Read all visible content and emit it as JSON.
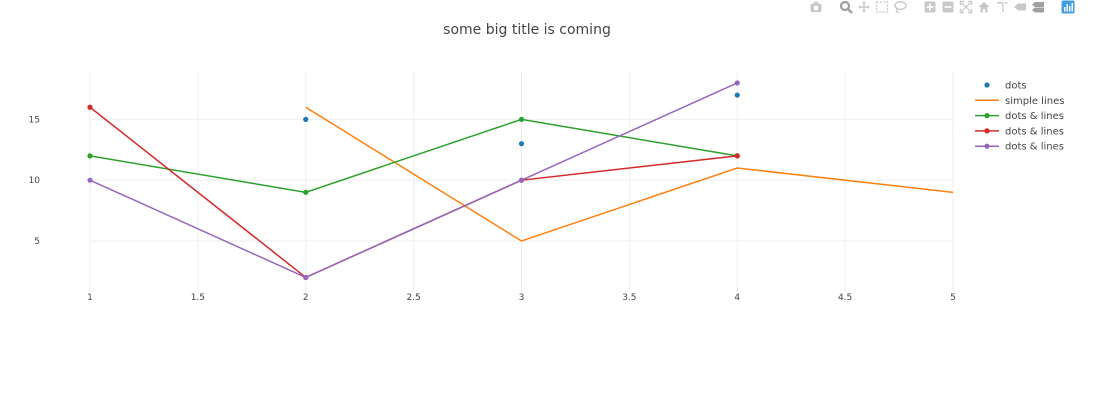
{
  "modebar": {
    "icons": [
      "camera-icon",
      "zoom-icon",
      "pan-icon",
      "box-select-icon",
      "lasso-select-icon",
      "zoom-in-icon",
      "zoom-out-icon",
      "autoscale-icon",
      "reset-axes-icon",
      "spike-lines-icon",
      "hover-closest-icon",
      "hover-compare-icon",
      "plotly-logo-icon"
    ],
    "icon_color": "#c8c8c8",
    "active_color": "#a0a0a0",
    "logo_color": "#3f9ee6"
  },
  "chart_data": {
    "type": "line",
    "title": "some big title is coming",
    "xlabel": "",
    "ylabel": "",
    "xlim": [
      1,
      5
    ],
    "ylim": [
      0.8,
      18.9
    ],
    "x_ticks": [
      1,
      1.5,
      2,
      2.5,
      3,
      3.5,
      4,
      4.5,
      5
    ],
    "x_tick_labels": [
      "1",
      "1.5",
      "2",
      "2.5",
      "3",
      "3.5",
      "4",
      "4.5",
      "5"
    ],
    "y_ticks": [
      5,
      10,
      15
    ],
    "y_tick_labels": [
      "5",
      "10",
      "15"
    ],
    "grid": true,
    "legend_position": "top-right",
    "series": [
      {
        "name": "dots",
        "mode": "markers",
        "color": "#1f77b4",
        "x": [
          2,
          3,
          4
        ],
        "y": [
          15,
          13,
          17
        ]
      },
      {
        "name": "simple lines",
        "mode": "lines",
        "color": "#ff7f0e",
        "x": [
          2,
          3,
          4,
          5
        ],
        "y": [
          16,
          5,
          11,
          9
        ]
      },
      {
        "name": "dots & lines",
        "mode": "lines+markers",
        "color": "#2ca02c",
        "x": [
          1,
          2,
          3,
          4
        ],
        "y": [
          12,
          9,
          15,
          12
        ]
      },
      {
        "name": "dots & lines",
        "mode": "lines+markers",
        "color": "#d62728",
        "x": [
          1,
          2,
          3,
          4
        ],
        "y": [
          16,
          2,
          10,
          12
        ]
      },
      {
        "name": "dots & lines",
        "mode": "lines+markers",
        "color": "#9467bd",
        "x": [
          1,
          2,
          3,
          4
        ],
        "y": [
          10,
          2,
          10,
          18
        ]
      }
    ]
  }
}
